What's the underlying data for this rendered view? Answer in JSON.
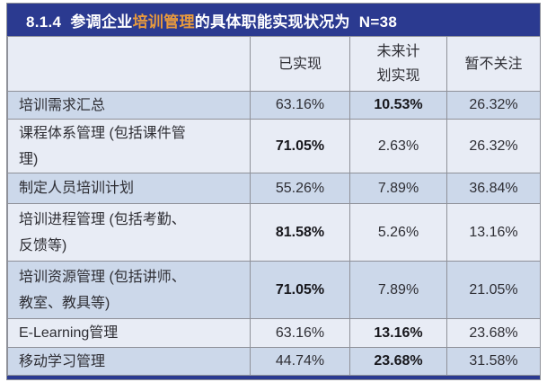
{
  "title": {
    "prefix": "8.1.4  参调企业",
    "highlight": "培训管理",
    "suffix": "的具体职能实现状况为  N=38"
  },
  "table": {
    "headers": [
      "",
      "已实现",
      "未来计\n划实现",
      "暂不关注"
    ],
    "rows": [
      {
        "label": "培训需求汇总",
        "values": [
          "63.16%",
          "10.53%",
          "26.32%"
        ],
        "bold": [
          false,
          true,
          false
        ]
      },
      {
        "label": "课程体系管理 (包括课件管\n理)",
        "values": [
          "71.05%",
          "2.63%",
          "26.32%"
        ],
        "bold": [
          true,
          false,
          false
        ]
      },
      {
        "label": "制定人员培训计划",
        "values": [
          "55.26%",
          "7.89%",
          "36.84%"
        ],
        "bold": [
          false,
          false,
          false
        ]
      },
      {
        "label": "培训进程管理 (包括考勤、\n反馈等)",
        "values": [
          "81.58%",
          "5.26%",
          "13.16%"
        ],
        "bold": [
          true,
          false,
          false
        ]
      },
      {
        "label": "培训资源管理 (包括讲师、\n教室、教具等)",
        "values": [
          "71.05%",
          "7.89%",
          "21.05%"
        ],
        "bold": [
          true,
          false,
          false
        ]
      },
      {
        "label": "E-Learning管理",
        "values": [
          "63.16%",
          "13.16%",
          "23.68%"
        ],
        "bold": [
          false,
          true,
          false
        ]
      },
      {
        "label": "移动学习管理",
        "values": [
          "44.74%",
          "23.68%",
          "31.58%"
        ],
        "bold": [
          false,
          true,
          false
        ]
      }
    ]
  },
  "chart_data": {
    "type": "table",
    "title": "8.1.4 参调企业培训管理的具体职能实现状况为 N=38",
    "categories": [
      "培训需求汇总",
      "课程体系管理 (包括课件管理)",
      "制定人员培训计划",
      "培训进程管理 (包括考勤、反馈等)",
      "培训资源管理 (包括讲师、教室、教具等)",
      "E-Learning管理",
      "移动学习管理"
    ],
    "series": [
      {
        "name": "已实现",
        "values": [
          63.16,
          71.05,
          55.26,
          81.58,
          71.05,
          63.16,
          44.74
        ]
      },
      {
        "name": "未来计划实现",
        "values": [
          10.53,
          2.63,
          7.89,
          5.26,
          7.89,
          13.16,
          23.68
        ]
      },
      {
        "name": "暂不关注",
        "values": [
          26.32,
          26.32,
          36.84,
          13.16,
          21.05,
          23.68,
          31.58
        ]
      }
    ],
    "unit": "%"
  },
  "colors": {
    "navy": "#2b3a90",
    "orange": "#e89a3d",
    "row_dark": "#ccd8ea",
    "row_light": "#e8ecf5",
    "border": "#8f9199",
    "text": "#2e2e34"
  }
}
